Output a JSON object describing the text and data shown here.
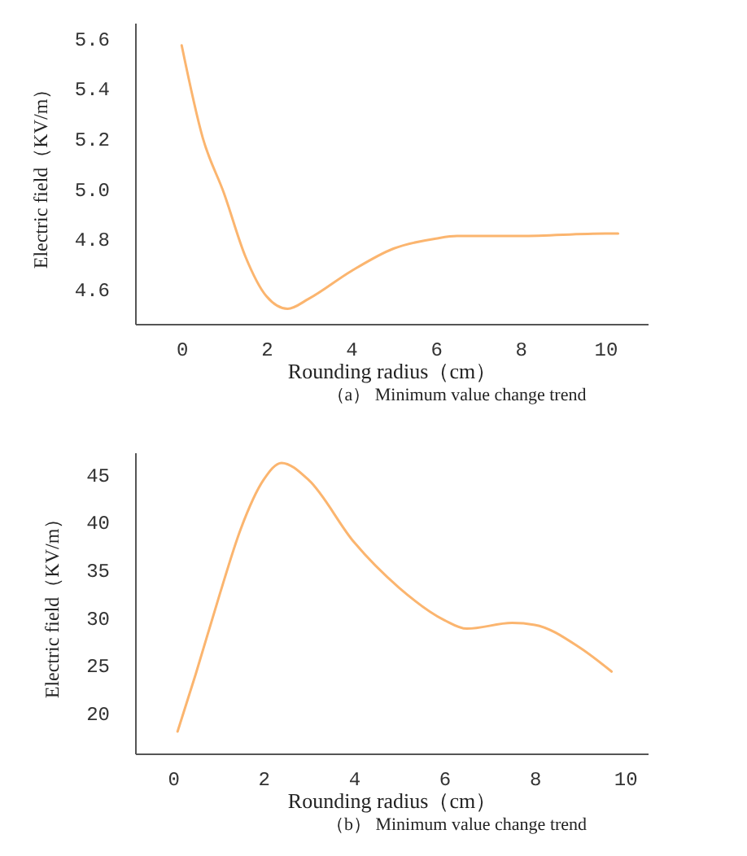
{
  "chart_data": [
    {
      "type": "line",
      "xlabel": "Rounding radius（cm）",
      "ylabel": "Electric field（KV/m）",
      "annotations": [
        "（a） Minimum value change trend"
      ],
      "xlim": [
        -1.1,
        11
      ],
      "ylim": [
        4.46,
        5.66
      ],
      "xticks": [
        0,
        2,
        4,
        6,
        8,
        10
      ],
      "yticks": [
        4.6,
        4.8,
        {
          "value": 5,
          "label": "5.0"
        },
        5.2,
        5.4,
        5.6
      ],
      "grid": false,
      "marker": "none",
      "line_style": "solid",
      "series": [
        {
          "color": "#fbb56f",
          "x": [
            0,
            0.5,
            1,
            1.5,
            2,
            2.5,
            3,
            4,
            5,
            6,
            6.5,
            8,
            10,
            10.3
          ],
          "values": [
            5.57,
            5.2,
            4.98,
            4.73,
            4.57,
            4.52,
            4.56,
            4.67,
            4.76,
            4.8,
            4.81,
            4.81,
            4.82,
            4.82
          ]
        }
      ]
    },
    {
      "type": "line",
      "xlabel": "Rounding radius（cm）",
      "ylabel": "Electric field（KV/m）",
      "annotations": [
        "（b） Minimum value change trend"
      ],
      "xlim": [
        -0.84,
        10.5
      ],
      "ylim": [
        15.7,
        47.3
      ],
      "xticks": [
        0,
        2,
        4,
        6,
        8,
        10
      ],
      "yticks": [
        20,
        25,
        30,
        35,
        40,
        45
      ],
      "grid": false,
      "marker": "none",
      "line_style": "solid",
      "series": [
        {
          "color": "#fbb56f",
          "x": [
            0.1,
            0.5,
            1,
            1.5,
            2,
            2.4,
            3,
            4,
            5,
            6,
            6.5,
            7.5,
            8,
            9,
            9.7
          ],
          "values": [
            18.0,
            24,
            31.9,
            39.3,
            44.4,
            46.2,
            44.4,
            37.9,
            33.1,
            29.7,
            28.8,
            29.4,
            29.2,
            26.8,
            24.3
          ]
        }
      ]
    }
  ]
}
